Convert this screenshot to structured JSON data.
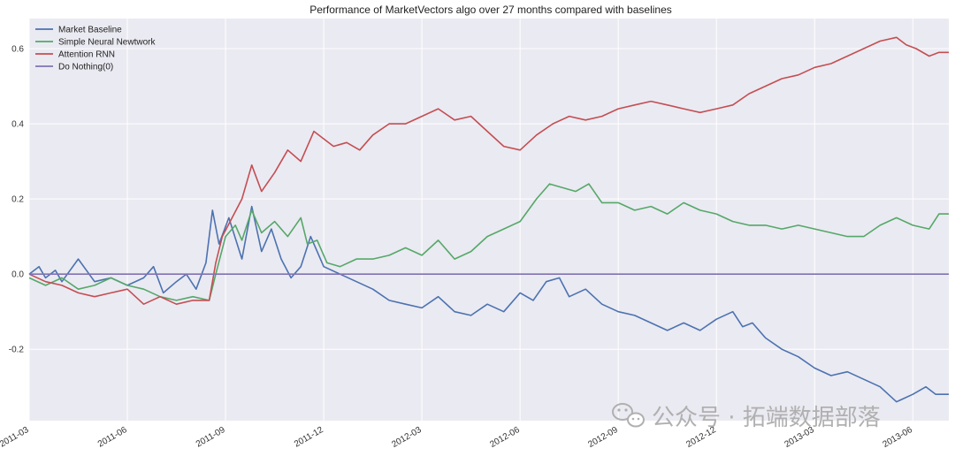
{
  "chart_data": {
    "type": "line",
    "title": "Performance of MarketVectors algo over 27 months compared with baselines",
    "xlabel": "",
    "ylabel": "",
    "x_ticks": [
      "2011-03",
      "2011-06",
      "2011-09",
      "2011-12",
      "2012-03",
      "2012-06",
      "2012-09",
      "2012-12",
      "2013-03",
      "2013-06"
    ],
    "x_tick_positions": [
      0.5,
      3.5,
      6.5,
      9.5,
      12.5,
      15.5,
      18.5,
      21.5,
      24.5,
      27.5
    ],
    "xlim": [
      0.5,
      28.6
    ],
    "y_ticks": [
      -0.2,
      0.0,
      0.2,
      0.4,
      0.6
    ],
    "ylim": [
      -0.39,
      0.68
    ],
    "grid": true,
    "legend_position": "top-left",
    "series": [
      {
        "name": "Market Baseline",
        "color": "#4c72b0",
        "x": [
          0.5,
          0.8,
          1.0,
          1.3,
          1.5,
          2.0,
          2.5,
          3.0,
          3.5,
          4.0,
          4.3,
          4.6,
          5.0,
          5.3,
          5.6,
          5.9,
          6.1,
          6.3,
          6.6,
          7.0,
          7.3,
          7.6,
          7.9,
          8.2,
          8.5,
          8.8,
          9.1,
          9.5,
          10.0,
          10.5,
          11.0,
          11.5,
          12.0,
          12.5,
          13.0,
          13.5,
          14.0,
          14.5,
          15.0,
          15.5,
          15.9,
          16.3,
          16.7,
          17.0,
          17.5,
          18.0,
          18.5,
          19.0,
          19.5,
          20.0,
          20.5,
          21.0,
          21.5,
          22.0,
          22.3,
          22.6,
          23.0,
          23.5,
          24.0,
          24.5,
          25.0,
          25.5,
          26.0,
          26.5,
          27.0,
          27.5,
          27.9,
          28.2,
          28.6
        ],
        "y": [
          0.0,
          0.02,
          -0.01,
          0.01,
          -0.02,
          0.04,
          -0.02,
          -0.01,
          -0.03,
          -0.01,
          0.02,
          -0.05,
          -0.02,
          0.0,
          -0.04,
          0.03,
          0.17,
          0.08,
          0.15,
          0.04,
          0.18,
          0.06,
          0.12,
          0.04,
          -0.01,
          0.02,
          0.1,
          0.02,
          0.0,
          -0.02,
          -0.04,
          -0.07,
          -0.08,
          -0.09,
          -0.06,
          -0.1,
          -0.11,
          -0.08,
          -0.1,
          -0.05,
          -0.07,
          -0.02,
          -0.01,
          -0.06,
          -0.04,
          -0.08,
          -0.1,
          -0.11,
          -0.13,
          -0.15,
          -0.13,
          -0.15,
          -0.12,
          -0.1,
          -0.14,
          -0.13,
          -0.17,
          -0.2,
          -0.22,
          -0.25,
          -0.27,
          -0.26,
          -0.28,
          -0.3,
          -0.34,
          -0.32,
          -0.3,
          -0.32,
          -0.32
        ]
      },
      {
        "name": "Simple Neural Newtwork",
        "color": "#55a868",
        "x": [
          0.5,
          1.0,
          1.5,
          2.0,
          2.5,
          3.0,
          3.5,
          4.0,
          4.5,
          5.0,
          5.5,
          6.0,
          6.2,
          6.5,
          6.8,
          7.0,
          7.3,
          7.6,
          8.0,
          8.4,
          8.8,
          9.0,
          9.3,
          9.6,
          10.0,
          10.5,
          11.0,
          11.5,
          12.0,
          12.5,
          13.0,
          13.5,
          14.0,
          14.5,
          15.0,
          15.5,
          16.0,
          16.4,
          16.8,
          17.2,
          17.6,
          18.0,
          18.5,
          19.0,
          19.5,
          20.0,
          20.5,
          21.0,
          21.5,
          22.0,
          22.5,
          23.0,
          23.5,
          24.0,
          24.5,
          25.0,
          25.5,
          26.0,
          26.5,
          27.0,
          27.5,
          28.0,
          28.3,
          28.6
        ],
        "y": [
          -0.01,
          -0.03,
          -0.01,
          -0.04,
          -0.03,
          -0.01,
          -0.03,
          -0.04,
          -0.06,
          -0.07,
          -0.06,
          -0.07,
          0.0,
          0.1,
          0.13,
          0.09,
          0.17,
          0.11,
          0.14,
          0.1,
          0.15,
          0.08,
          0.09,
          0.03,
          0.02,
          0.04,
          0.04,
          0.05,
          0.07,
          0.05,
          0.09,
          0.04,
          0.06,
          0.1,
          0.12,
          0.14,
          0.2,
          0.24,
          0.23,
          0.22,
          0.24,
          0.19,
          0.19,
          0.17,
          0.18,
          0.16,
          0.19,
          0.17,
          0.16,
          0.14,
          0.13,
          0.13,
          0.12,
          0.13,
          0.12,
          0.11,
          0.1,
          0.1,
          0.13,
          0.15,
          0.13,
          0.12,
          0.16,
          0.16
        ]
      },
      {
        "name": "Attention RNN",
        "color": "#c44e52",
        "x": [
          0.5,
          1.0,
          1.5,
          2.0,
          2.5,
          3.0,
          3.5,
          4.0,
          4.5,
          5.0,
          5.5,
          6.0,
          6.2,
          6.4,
          6.7,
          7.0,
          7.3,
          7.6,
          8.0,
          8.4,
          8.8,
          9.2,
          9.5,
          9.8,
          10.2,
          10.6,
          11.0,
          11.5,
          12.0,
          12.5,
          13.0,
          13.5,
          14.0,
          14.5,
          15.0,
          15.5,
          16.0,
          16.5,
          17.0,
          17.5,
          18.0,
          18.5,
          19.0,
          19.5,
          20.0,
          20.5,
          21.0,
          21.5,
          22.0,
          22.5,
          23.0,
          23.5,
          24.0,
          24.5,
          25.0,
          25.5,
          26.0,
          26.5,
          27.0,
          27.3,
          27.6,
          28.0,
          28.3,
          28.6
        ],
        "y": [
          0.0,
          -0.02,
          -0.03,
          -0.05,
          -0.06,
          -0.05,
          -0.04,
          -0.08,
          -0.06,
          -0.08,
          -0.07,
          -0.07,
          0.03,
          0.1,
          0.15,
          0.2,
          0.29,
          0.22,
          0.27,
          0.33,
          0.3,
          0.38,
          0.36,
          0.34,
          0.35,
          0.33,
          0.37,
          0.4,
          0.4,
          0.42,
          0.44,
          0.41,
          0.42,
          0.38,
          0.34,
          0.33,
          0.37,
          0.4,
          0.42,
          0.41,
          0.42,
          0.44,
          0.45,
          0.46,
          0.45,
          0.44,
          0.43,
          0.44,
          0.45,
          0.48,
          0.5,
          0.52,
          0.53,
          0.55,
          0.56,
          0.58,
          0.6,
          0.62,
          0.63,
          0.61,
          0.6,
          0.58,
          0.59,
          0.59
        ]
      },
      {
        "name": "Do Nothing(0)",
        "color": "#8172b2",
        "x": [
          0.5,
          28.6
        ],
        "y": [
          0.0,
          0.0
        ]
      }
    ]
  },
  "watermark": {
    "text": "公众号 · 拓端数据部落",
    "icon": "wechat-icon",
    "color": "#b0b0b0"
  }
}
